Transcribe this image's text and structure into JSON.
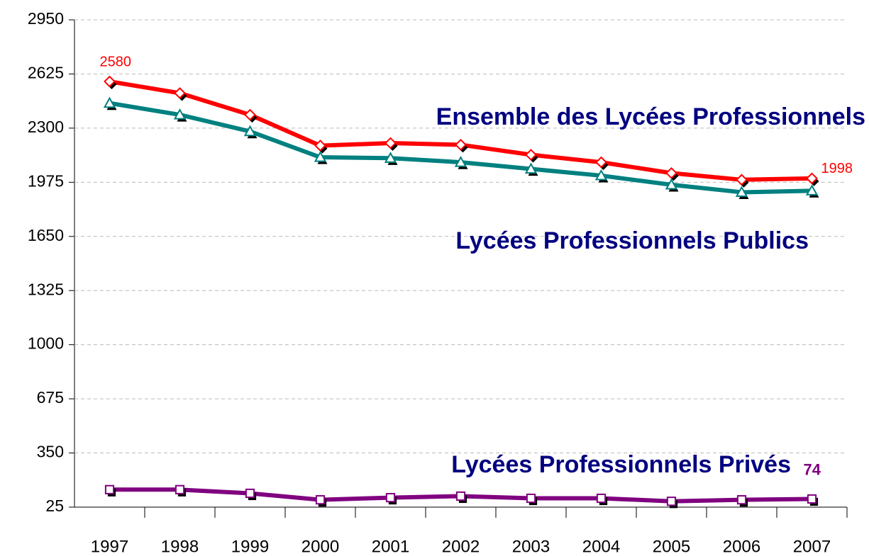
{
  "chart_data": {
    "type": "line",
    "categories": [
      "1997",
      "1998",
      "1999",
      "2000",
      "2001",
      "2002",
      "2003",
      "2004",
      "2005",
      "2006",
      "2007"
    ],
    "series": [
      {
        "name": "Ensemble des Lycées Professionnels",
        "color": "#ff0000",
        "marker": "diamond",
        "values": [
          2580,
          2510,
          2380,
          2195,
          2210,
          2200,
          2140,
          2095,
          2030,
          1990,
          1998
        ]
      },
      {
        "name": "Lycées Professionnels Publics",
        "color": "#008080",
        "marker": "triangle",
        "values": [
          2450,
          2380,
          2280,
          2125,
          2120,
          2095,
          2055,
          2015,
          1960,
          1915,
          1924
        ]
      },
      {
        "name": "Lycées Professionnels Privés",
        "color": "#800080",
        "marker": "square",
        "values": [
          130,
          130,
          108,
          69,
          82,
          91,
          78,
          78,
          60,
          69,
          74
        ]
      }
    ],
    "ylim": [
      25,
      2950
    ],
    "yticks": [
      25,
      350,
      675,
      1000,
      1325,
      1650,
      1975,
      2300,
      2625,
      2950
    ],
    "grid": true
  }
}
